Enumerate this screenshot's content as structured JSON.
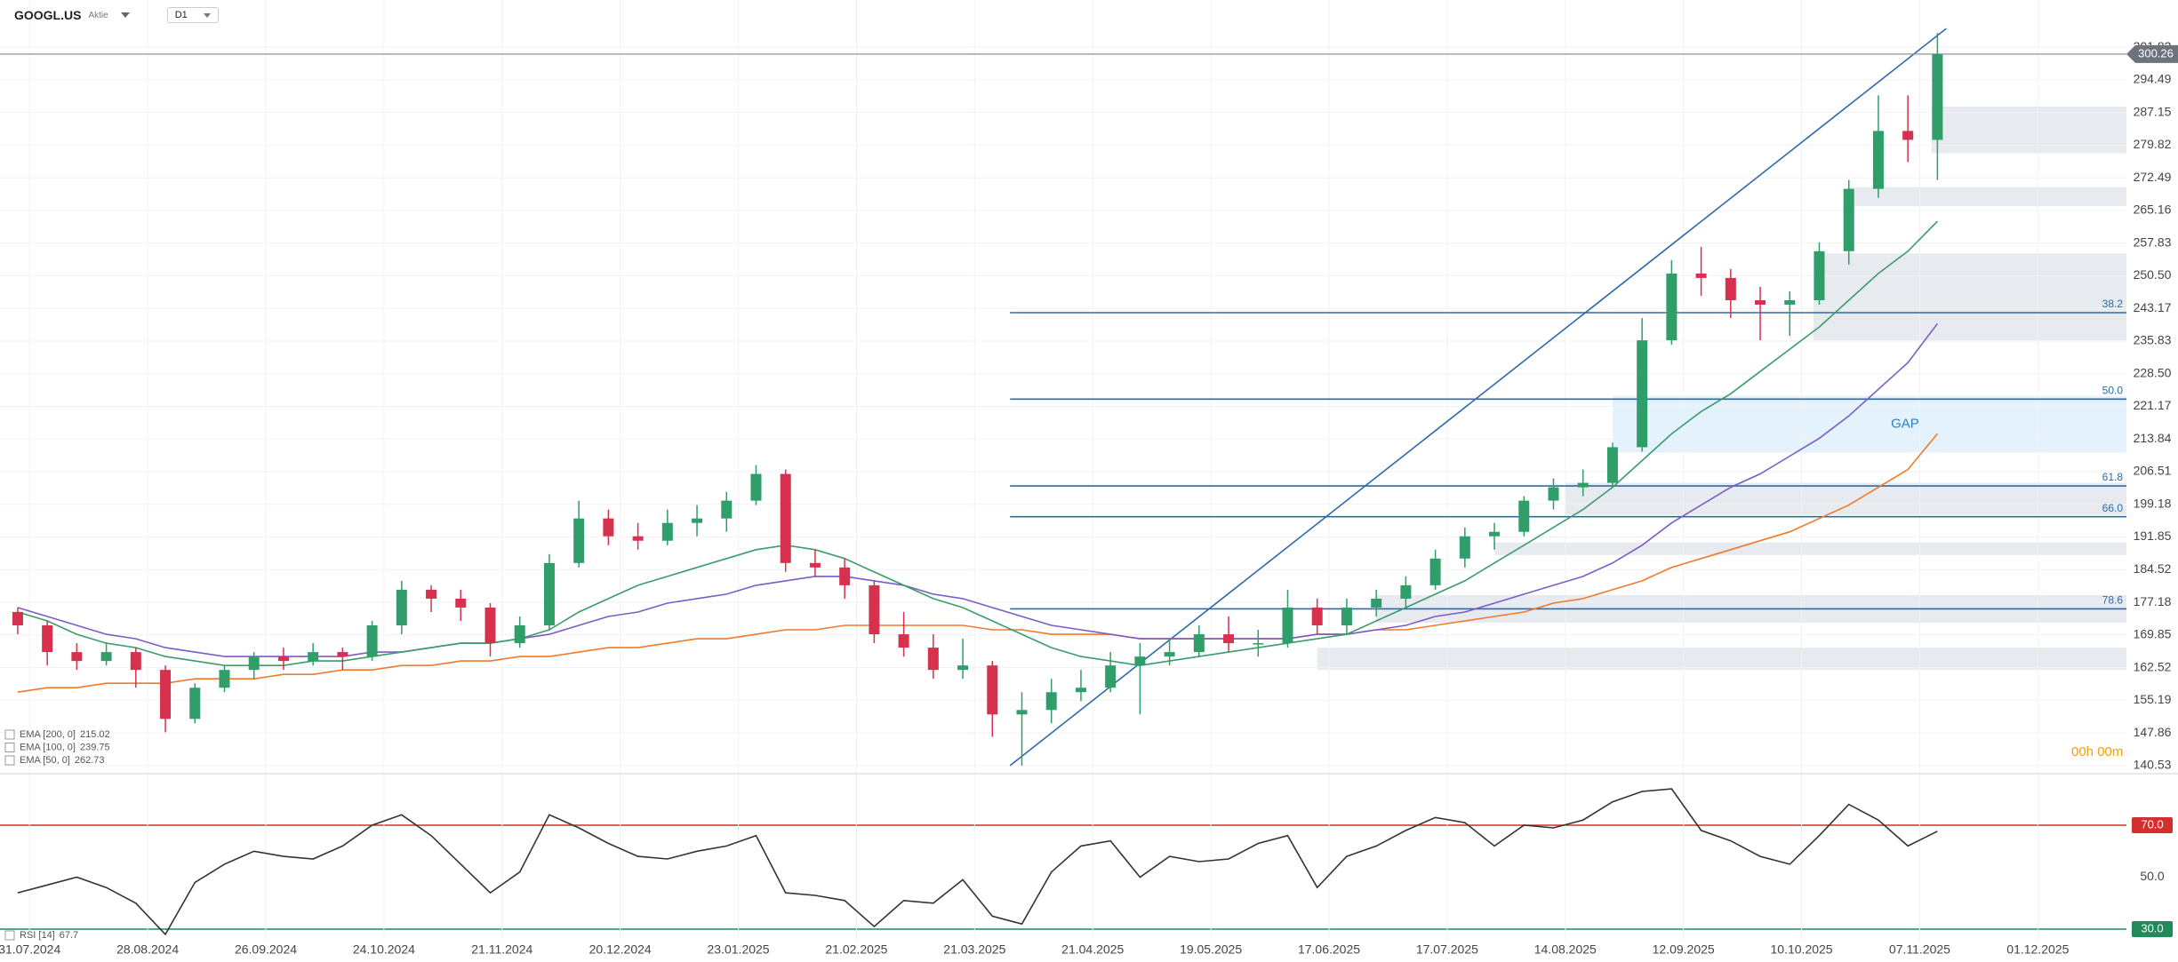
{
  "header": {
    "symbol": "GOOGL.US",
    "asset_class": "Aktie",
    "timeframe": "D1",
    "countdown": "00h 00m"
  },
  "chart_data": [
    {
      "type": "candlestick",
      "up_color": "#2f9e68",
      "down_color": "#d6314e",
      "x": [
        2,
        7,
        12,
        17,
        22,
        27,
        32,
        37,
        42,
        47,
        52,
        57,
        62,
        67,
        72,
        77,
        82,
        87,
        92,
        97,
        102,
        107,
        112,
        117,
        122,
        127,
        132,
        137,
        142,
        147,
        152,
        157,
        162,
        167,
        172,
        177,
        182,
        187,
        192,
        197,
        202,
        207,
        212,
        217,
        222,
        227,
        232,
        237,
        242,
        247,
        252,
        257,
        262,
        267,
        272,
        277,
        282,
        287,
        292,
        297,
        302,
        307,
        312,
        317,
        322,
        327
      ],
      "open": [
        175,
        172,
        166,
        164,
        166,
        162,
        151,
        158,
        162,
        165,
        164,
        166,
        165,
        172,
        180,
        178,
        176,
        168,
        172,
        186,
        196,
        192,
        191,
        195,
        196,
        200,
        206,
        186,
        185,
        181,
        170,
        167,
        162,
        163,
        152,
        153,
        157,
        158,
        163,
        165,
        166,
        170,
        168,
        168,
        176,
        172,
        176,
        178,
        181,
        187,
        192,
        193,
        200,
        203,
        204,
        212,
        236,
        251,
        250,
        245,
        244,
        245,
        256,
        270,
        283,
        281
      ],
      "high": [
        176,
        173,
        168,
        168,
        167,
        163,
        159,
        163,
        166,
        167,
        168,
        167,
        173,
        182,
        181,
        180,
        177,
        174,
        188,
        200,
        198,
        195,
        198,
        199,
        202,
        208,
        207,
        189,
        187,
        182,
        175,
        170,
        169,
        164,
        157,
        160,
        162,
        166,
        168,
        169,
        172,
        174,
        171,
        180,
        178,
        178,
        180,
        183,
        189,
        194,
        195,
        201,
        205,
        207,
        213,
        241,
        254,
        257,
        252,
        248,
        247,
        258,
        272,
        291,
        291,
        305
      ],
      "low": [
        170,
        163,
        162,
        163,
        158,
        148,
        150,
        157,
        160,
        162,
        163,
        162,
        164,
        170,
        175,
        173,
        165,
        167,
        171,
        185,
        190,
        189,
        190,
        192,
        193,
        199,
        184,
        183,
        178,
        168,
        165,
        160,
        160,
        147,
        140.53,
        150,
        155,
        157,
        152,
        163,
        165,
        166,
        165,
        167,
        170,
        170,
        174,
        176,
        180,
        185,
        189,
        192,
        198,
        201,
        203,
        211,
        235,
        246,
        241,
        236,
        237,
        244,
        253,
        268,
        276,
        272
      ],
      "close": [
        172,
        166,
        164,
        166,
        162,
        151,
        158,
        162,
        165,
        164,
        166,
        165,
        172,
        180,
        178,
        176,
        168,
        172,
        186,
        196,
        192,
        191,
        195,
        196,
        200,
        206,
        186,
        185,
        181,
        170,
        167,
        162,
        163,
        152,
        153,
        157,
        158,
        163,
        165,
        166,
        170,
        168,
        168,
        176,
        172,
        176,
        178,
        181,
        187,
        192,
        193,
        200,
        203,
        204,
        212,
        236,
        251,
        250,
        245,
        244,
        245,
        256,
        270,
        283,
        281,
        300.26
      ],
      "series": [
        {
          "name": "EMA [200, 0]",
          "color": "#f07a2a",
          "values": [
            157,
            158,
            158,
            159,
            159,
            159,
            160,
            160,
            160,
            161,
            161,
            162,
            162,
            163,
            163,
            164,
            164,
            165,
            165,
            166,
            167,
            167,
            168,
            169,
            169,
            170,
            171,
            171,
            172,
            172,
            172,
            172,
            172,
            171,
            171,
            170,
            170,
            170,
            169,
            169,
            169,
            169,
            169,
            169,
            170,
            170,
            171,
            171,
            172,
            173,
            174,
            175,
            177,
            178,
            180,
            182,
            185,
            187,
            189,
            191,
            193,
            196,
            199,
            203,
            207,
            215.02
          ]
        },
        {
          "name": "EMA [100, 0]",
          "color": "#7a5cc8",
          "values": [
            176,
            174,
            172,
            170,
            169,
            167,
            166,
            165,
            165,
            165,
            165,
            165,
            166,
            166,
            167,
            168,
            168,
            169,
            170,
            172,
            174,
            175,
            177,
            178,
            179,
            181,
            182,
            183,
            183,
            182,
            181,
            179,
            178,
            176,
            174,
            172,
            171,
            170,
            169,
            169,
            169,
            169,
            169,
            169,
            170,
            170,
            171,
            172,
            174,
            175,
            177,
            179,
            181,
            183,
            186,
            190,
            195,
            199,
            203,
            206,
            210,
            214,
            219,
            225,
            231,
            239.75
          ]
        },
        {
          "name": "EMA [50, 0]",
          "color": "#3a9c6b",
          "values": [
            175,
            173,
            170,
            168,
            167,
            165,
            164,
            163,
            163,
            163,
            164,
            164,
            165,
            166,
            167,
            168,
            168,
            169,
            171,
            175,
            178,
            181,
            183,
            185,
            187,
            189,
            190,
            189,
            187,
            184,
            181,
            178,
            176,
            173,
            170,
            167,
            165,
            164,
            163,
            164,
            165,
            166,
            167,
            168,
            169,
            170,
            173,
            176,
            179,
            182,
            186,
            190,
            194,
            198,
            203,
            209,
            215,
            220,
            224,
            229,
            234,
            239,
            245,
            251,
            256,
            262.73
          ]
        }
      ],
      "fib_levels": [
        {
          "label": "38.2",
          "price": 242.2
        },
        {
          "label": "50.0",
          "price": 222.8
        },
        {
          "label": "61.8",
          "price": 203.3
        },
        {
          "label": "66.0",
          "price": 196.4
        },
        {
          "label": "78.6",
          "price": 175.7
        }
      ],
      "zones": [
        {
          "x0": 326,
          "low": 278,
          "high": 288.5
        },
        {
          "x0": 312,
          "low": 266.1,
          "high": 270.4
        },
        {
          "x0": 306,
          "low": 236,
          "high": 255.5
        },
        {
          "x0": 264,
          "low": 196.8,
          "high": 204
        },
        {
          "x0": 252,
          "low": 187.8,
          "high": 190.6
        },
        {
          "x0": 232,
          "low": 172.6,
          "high": 178.8
        },
        {
          "x0": 222,
          "low": 162,
          "high": 167
        }
      ],
      "gap": {
        "label": "GAP",
        "x0": 272,
        "low": 210.8,
        "high": 223.5
      },
      "trendline": {
        "x": [
          170,
          328.5
        ],
        "y": [
          140.53,
          306
        ]
      },
      "xlim": [
        -1,
        359
      ],
      "ylim": [
        138.9,
        312.4
      ],
      "yticks": [
        301.82,
        294.49,
        287.15,
        279.82,
        272.49,
        265.16,
        257.83,
        {
          "value": 250.5,
          "label": "250.50"
        },
        243.17,
        235.83,
        {
          "value": 228.5,
          "label": "228.50"
        },
        221.17,
        213.84,
        206.51,
        199.18,
        191.85,
        184.52,
        177.18,
        169.85,
        162.52,
        155.19,
        147.86,
        140.53
      ],
      "grid": true
    },
    {
      "type": "line",
      "x": [
        2,
        7,
        12,
        17,
        22,
        27,
        32,
        37,
        42,
        47,
        52,
        57,
        62,
        67,
        72,
        77,
        82,
        87,
        92,
        97,
        102,
        107,
        112,
        117,
        122,
        127,
        132,
        137,
        142,
        147,
        152,
        157,
        162,
        167,
        172,
        177,
        182,
        187,
        192,
        197,
        202,
        207,
        212,
        217,
        222,
        227,
        232,
        237,
        242,
        247,
        252,
        257,
        262,
        267,
        272,
        277,
        282,
        287,
        292,
        297,
        302,
        307,
        312,
        317,
        322,
        327
      ],
      "series": [
        {
          "name": "RSI [14]",
          "color": "#333333",
          "values": [
            44,
            47,
            50,
            46,
            40,
            28,
            48,
            55,
            60,
            58,
            57,
            62,
            70,
            74,
            66,
            55,
            44,
            52,
            74,
            69,
            63,
            58,
            57,
            60,
            62,
            66,
            44,
            43,
            41,
            31,
            41,
            40,
            49,
            35,
            32,
            52,
            62,
            64,
            50,
            58,
            56,
            57,
            63,
            66,
            46,
            58,
            62,
            68,
            73,
            71,
            62,
            70,
            69,
            72,
            79,
            83,
            84,
            68,
            64,
            58,
            55,
            66,
            78,
            72,
            62,
            67.7
          ]
        }
      ],
      "xlim": [
        -1,
        359
      ],
      "ylim": [
        25.9,
        89.5
      ],
      "yticks": [
        {
          "value": 70,
          "label": "70.0",
          "color": "#d32f2f"
        },
        {
          "value": 50,
          "label": "50.0"
        },
        {
          "value": 30,
          "label": "30.0",
          "color": "#1f8a5a"
        }
      ],
      "xticks": [
        {
          "value": 4,
          "label": "31.07.2024"
        },
        {
          "value": 24,
          "label": "28.08.2024"
        },
        {
          "value": 44,
          "label": "26.09.2024"
        },
        {
          "value": 64,
          "label": "24.10.2024"
        },
        {
          "value": 84,
          "label": "21.11.2024"
        },
        {
          "value": 104,
          "label": "20.12.2024"
        },
        {
          "value": 124,
          "label": "23.01.2025"
        },
        {
          "value": 144,
          "label": "21.02.2025"
        },
        {
          "value": 164,
          "label": "21.03.2025"
        },
        {
          "value": 184,
          "label": "21.04.2025"
        },
        {
          "value": 204,
          "label": "19.05.2025"
        },
        {
          "value": 224,
          "label": "17.06.2025"
        },
        {
          "value": 244,
          "label": "17.07.2025"
        },
        {
          "value": 264,
          "label": "14.08.2025"
        },
        {
          "value": 284,
          "label": "12.09.2025"
        },
        {
          "value": 304,
          "label": "10.10.2025"
        },
        {
          "value": 324,
          "label": "07.11.2025"
        },
        {
          "value": 344,
          "label": "01.12.2025"
        }
      ],
      "grid": true
    }
  ]
}
